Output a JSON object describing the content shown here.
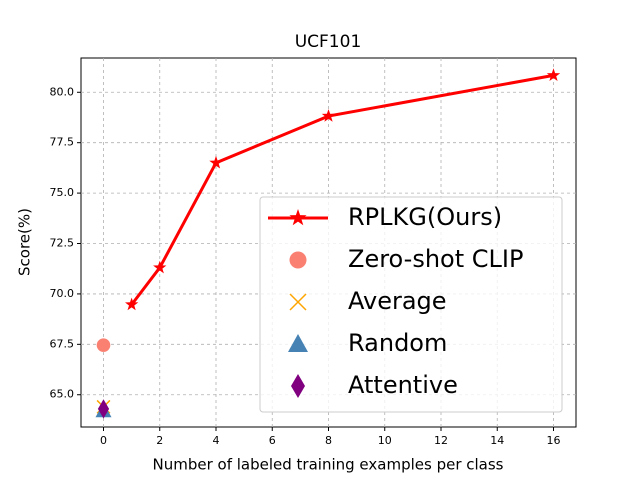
{
  "chart_data": {
    "type": "line",
    "title": "UCF101",
    "xlabel": "Number of labeled training examples per class",
    "ylabel": "Score(%)",
    "xlim": [
      -0.8,
      16.8
    ],
    "ylim": [
      63.4,
      81.7
    ],
    "xticks": [
      0,
      2,
      4,
      6,
      8,
      10,
      12,
      14,
      16
    ],
    "yticks": [
      {
        "value": 65,
        "label": "65.0"
      },
      67.5,
      {
        "value": 70,
        "label": "70.0"
      },
      72.5,
      {
        "value": 75,
        "label": "75.0"
      },
      77.5,
      {
        "value": 80,
        "label": "80.0"
      }
    ],
    "grid": true,
    "legend": "lower right",
    "series": [
      {
        "name": "RPLKG(Ours)",
        "color": "#ff0000",
        "marker": "star",
        "line": true,
        "x": [
          1,
          2,
          4,
          8,
          16
        ],
        "values": [
          69.47,
          71.3,
          76.5,
          78.82,
          80.84
        ]
      },
      {
        "name": "Zero-shot CLIP",
        "color": "#fa8072",
        "marker": "circle",
        "line": false,
        "x": [
          0
        ],
        "values": [
          67.46
        ]
      },
      {
        "name": "Average",
        "color": "#ffa500",
        "marker": "x",
        "line": false,
        "x": [
          0
        ],
        "values": [
          64.4
        ]
      },
      {
        "name": "Random",
        "color": "#4682b4",
        "marker": "triangle",
        "line": false,
        "x": [
          0
        ],
        "values": [
          64.2
        ]
      },
      {
        "name": "Attentive",
        "color": "#800080",
        "marker": "diamond",
        "line": false,
        "x": [
          0
        ],
        "values": [
          64.3
        ]
      }
    ]
  }
}
